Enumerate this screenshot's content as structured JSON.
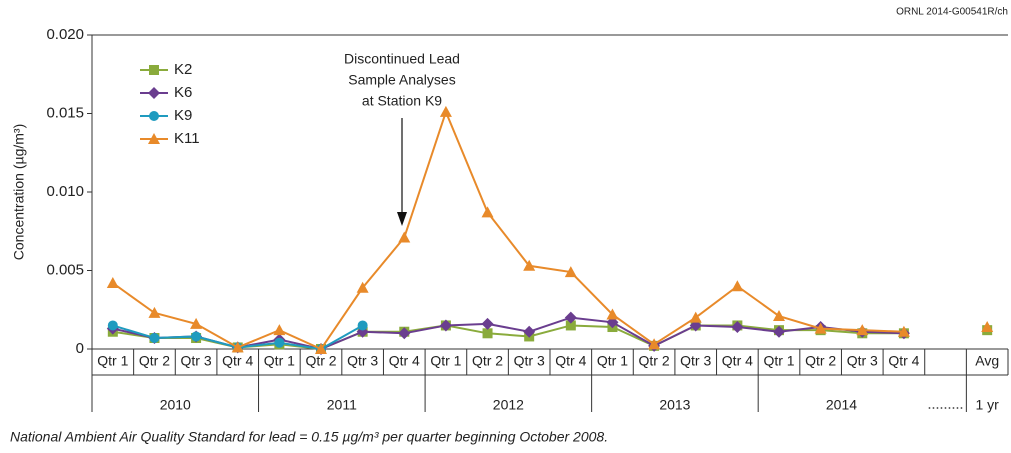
{
  "chart_data": {
    "type": "line",
    "code": "ORNL 2014-G00541R/ch",
    "y_label": "Concentration (µg/m³)",
    "annotation": [
      "Discontinued Lead",
      "Sample Analyses",
      "at Station K9"
    ],
    "footnote": "National Ambient Air Quality Standard for lead = 0.15 µg/m³ per quarter beginning October 2008.",
    "categories": [
      "Qtr 1",
      "Qtr 2",
      "Qtr 3",
      "Qtr 4",
      "Qtr 1",
      "Qtr 2",
      "Qtr 3",
      "Qtr 4",
      "Qtr 1",
      "Qtr 2",
      "Qtr 3",
      "Qtr 4",
      "Qtr 1",
      "Qtr 2",
      "Qtr 3",
      "Qtr 4",
      "Qtr 1",
      "Qtr 2",
      "Qtr 3",
      "Qtr 4",
      null,
      "Avg"
    ],
    "groups": [
      "2010",
      "2011",
      "2012",
      "2013",
      "2014",
      "1 yr"
    ],
    "ylim": [
      0,
      0.02
    ],
    "yticks": [
      0,
      0.005,
      {
        "value": 0.01,
        "label": "0.010"
      },
      0.015,
      {
        "value": 0.02,
        "label": "0.020"
      }
    ],
    "legend": "top-left",
    "series": [
      {
        "name": "K2",
        "color": "#8aab3c",
        "marker": "square",
        "values": [
          0.0011,
          0.0007,
          0.0007,
          0.0001,
          0.0003,
          0,
          0.0011,
          0.0011,
          0.0015,
          0.001,
          0.0008,
          0.0015,
          0.0014,
          0.0002,
          0.0015,
          0.0015,
          0.0012,
          0.0012,
          0.001,
          0.001,
          null,
          0.0012
        ]
      },
      {
        "name": "K6",
        "color": "#6a3d8f",
        "marker": "diamond",
        "values": [
          0.0013,
          0.0007,
          0.0008,
          0.0001,
          0.0006,
          0,
          0.0011,
          0.001,
          0.0015,
          0.0016,
          0.0011,
          0.002,
          0.0017,
          0.0002,
          0.0015,
          0.0014,
          0.0011,
          0.0014,
          0.0011,
          0.001,
          null,
          null
        ]
      },
      {
        "name": "K9",
        "color": "#1f9bbf",
        "marker": "circle",
        "values": [
          0.0015,
          0.0007,
          0.0008,
          0.0001,
          0.0004,
          0,
          0.0015,
          null,
          null,
          null,
          null,
          null,
          null,
          null,
          null,
          null,
          null,
          null,
          null,
          null,
          null,
          null
        ]
      },
      {
        "name": "K11",
        "color": "#e88a2a",
        "marker": "triangle",
        "values": [
          0.0042,
          0.0023,
          0.0016,
          0.0001,
          0.0012,
          0,
          0.0039,
          0.0071,
          0.0151,
          0.0087,
          0.0053,
          0.0049,
          0.0022,
          0.0003,
          0.002,
          0.004,
          0.0021,
          0.0013,
          0.0012,
          0.0011,
          null,
          0.0014
        ]
      }
    ]
  }
}
